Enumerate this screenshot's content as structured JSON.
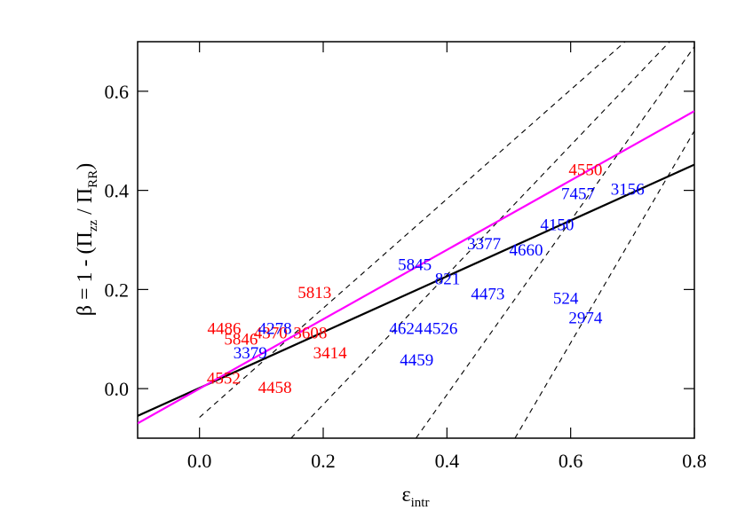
{
  "chart_data": {
    "type": "scatter",
    "xlabel": {
      "parts": [
        "ε",
        "intr"
      ]
    },
    "ylabel": {
      "parts": [
        "β = 1 - (Π",
        "zz",
        " / Π",
        "RR",
        ")"
      ]
    },
    "xlim": [
      -0.1,
      0.8
    ],
    "ylim": [
      -0.1,
      0.7
    ],
    "xticks": [
      {
        "value": 0.0,
        "label": "0.0"
      },
      0.2,
      0.4,
      0.6,
      0.8
    ],
    "yticks": [
      {
        "value": 0.0,
        "label": "0.0"
      },
      0.2,
      0.4,
      0.6
    ],
    "points": [
      {
        "label": "4550",
        "x": 0.624,
        "y": 0.443,
        "color": "#ff0000"
      },
      {
        "label": "5813",
        "x": 0.186,
        "y": 0.195,
        "color": "#ff0000"
      },
      {
        "label": "4486",
        "x": 0.04,
        "y": 0.123,
        "color": "#ff0000"
      },
      {
        "label": "5846",
        "x": 0.067,
        "y": 0.101,
        "color": "#ff0000"
      },
      {
        "label": "4370",
        "x": 0.115,
        "y": 0.114,
        "color": "#ff0000"
      },
      {
        "label": "3608",
        "x": 0.179,
        "y": 0.114,
        "color": "#ff0000"
      },
      {
        "label": "3414",
        "x": 0.211,
        "y": 0.074,
        "color": "#ff0000"
      },
      {
        "label": "4552",
        "x": 0.039,
        "y": 0.023,
        "color": "#ff0000"
      },
      {
        "label": "4458",
        "x": 0.122,
        "y": 0.004,
        "color": "#ff0000"
      },
      {
        "label": "3156",
        "x": 0.692,
        "y": 0.404,
        "color": "#0000ff"
      },
      {
        "label": "7457",
        "x": 0.612,
        "y": 0.395,
        "color": "#0000ff"
      },
      {
        "label": "4150",
        "x": 0.578,
        "y": 0.332,
        "color": "#0000ff"
      },
      {
        "label": "3377",
        "x": 0.46,
        "y": 0.294,
        "color": "#0000ff"
      },
      {
        "label": "4660",
        "x": 0.528,
        "y": 0.281,
        "color": "#0000ff"
      },
      {
        "label": "5845",
        "x": 0.348,
        "y": 0.252,
        "color": "#0000ff"
      },
      {
        "label": "821",
        "x": 0.401,
        "y": 0.223,
        "color": "#0000ff"
      },
      {
        "label": "4473",
        "x": 0.466,
        "y": 0.193,
        "color": "#0000ff"
      },
      {
        "label": "524",
        "x": 0.592,
        "y": 0.184,
        "color": "#0000ff"
      },
      {
        "label": "2974",
        "x": 0.624,
        "y": 0.144,
        "color": "#0000ff"
      },
      {
        "label": "4278",
        "x": 0.122,
        "y": 0.123,
        "color": "#0000ff"
      },
      {
        "label": "3379",
        "x": 0.082,
        "y": 0.074,
        "color": "#0000ff"
      },
      {
        "label": "4624",
        "x": 0.334,
        "y": 0.123,
        "color": "#0000ff"
      },
      {
        "label": "4526",
        "x": 0.39,
        "y": 0.123,
        "color": "#0000ff"
      },
      {
        "label": "4459",
        "x": 0.351,
        "y": 0.059,
        "color": "#0000ff"
      }
    ],
    "lines": [
      {
        "x": [
          0.0,
          0.688
        ],
        "y": [
          -0.058,
          0.7
        ],
        "color": "#000000",
        "dash": true
      },
      {
        "x": [
          0.148,
          0.76
        ],
        "y": [
          -0.1,
          0.7
        ],
        "color": "#000000",
        "dash": true
      },
      {
        "x": [
          0.35,
          0.8
        ],
        "y": [
          -0.1,
          0.69
        ],
        "color": "#000000",
        "dash": true
      },
      {
        "x": [
          0.51,
          0.8
        ],
        "y": [
          -0.1,
          0.52
        ],
        "color": "#000000",
        "dash": true
      },
      {
        "x": [
          -0.1,
          0.8
        ],
        "y": [
          -0.055,
          0.452
        ],
        "color": "#000000",
        "dash": false
      },
      {
        "x": [
          -0.1,
          0.8
        ],
        "y": [
          -0.07,
          0.56
        ],
        "color": "#ff00ff",
        "dash": false
      }
    ]
  }
}
